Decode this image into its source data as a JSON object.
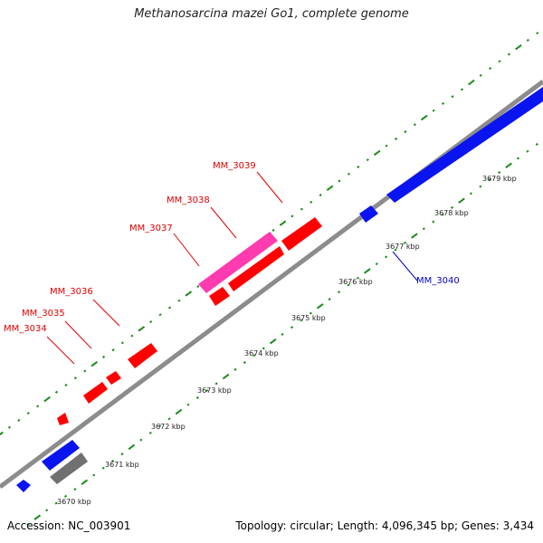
{
  "title": "Methanosarcina mazei Go1, complete genome",
  "footer": {
    "accession": "Accession: NC_003901",
    "stats": "Topology: circular; Length: 4,096,345 bp; Genes: 3,434"
  },
  "colors": {
    "backbone": "#8c8c8c",
    "ticks": "#1a8a1a",
    "gene_red": "#ff0000",
    "gene_magenta": "#ff3bb0",
    "gene_blue": "#0a14f0",
    "gene_grey": "#707070",
    "label_red": "#dd0000",
    "label_blue": "#0000cc"
  },
  "scale_labels": [
    "3670 kbp",
    "3671 kbp",
    "3672 kbp",
    "3673 kbp",
    "3674 kbp",
    "3675 kbp",
    "3676 kbp",
    "3677 kbp",
    "3678 kbp",
    "3679 kbp"
  ],
  "gene_labels": [
    {
      "name": "MM_3034",
      "color": "label_red"
    },
    {
      "name": "MM_3035",
      "color": "label_red"
    },
    {
      "name": "MM_3036",
      "color": "label_red"
    },
    {
      "name": "MM_3037",
      "color": "label_red"
    },
    {
      "name": "MM_3038",
      "color": "label_red"
    },
    {
      "name": "MM_3039",
      "color": "label_red"
    },
    {
      "name": "MM_3040",
      "color": "label_blue"
    }
  ]
}
